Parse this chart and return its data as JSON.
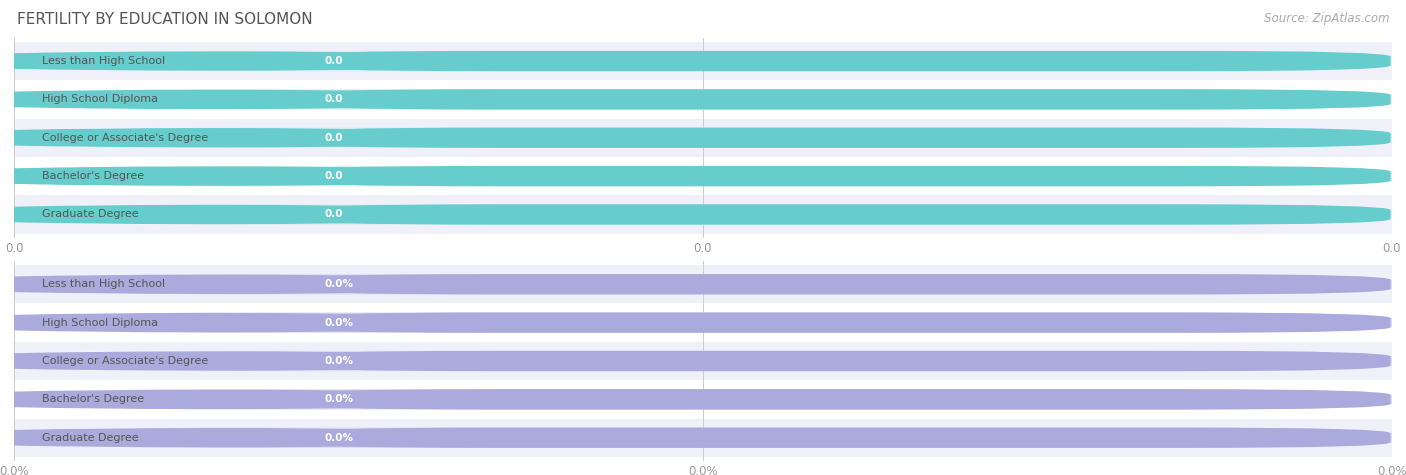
{
  "title": "FERTILITY BY EDUCATION IN SOLOMON",
  "source": "Source: ZipAtlas.com",
  "categories": [
    "Less than High School",
    "High School Diploma",
    "College or Associate's Degree",
    "Bachelor's Degree",
    "Graduate Degree"
  ],
  "values_top": [
    0.0,
    0.0,
    0.0,
    0.0,
    0.0
  ],
  "values_bottom": [
    0.0,
    0.0,
    0.0,
    0.0,
    0.0
  ],
  "bar_color_top": "#66CCCC",
  "bar_color_bottom": "#AAAADD",
  "bar_bg_color_top": "#D8F0EF",
  "bar_bg_color_bottom": "#DDDDF0",
  "label_bg_color": "#FFFFFF",
  "label_text_color": "#555555",
  "value_text_color": "#FFFFFF",
  "title_color": "#555555",
  "source_color": "#AAAAAA",
  "grid_color": "#CCCCCC",
  "bg_color": "#FFFFFF",
  "row_odd_color": "#FFFFFF",
  "row_even_color": "#F0F0F8",
  "xlim_max": 1.0,
  "xtick_labels_top": [
    "0.0",
    "0.0",
    "0.0"
  ],
  "xtick_labels_bottom": [
    "0.0%",
    "0.0%",
    "0.0%"
  ],
  "title_fontsize": 11,
  "source_fontsize": 8.5,
  "bar_label_fontsize": 8,
  "bar_value_fontsize": 7.5
}
